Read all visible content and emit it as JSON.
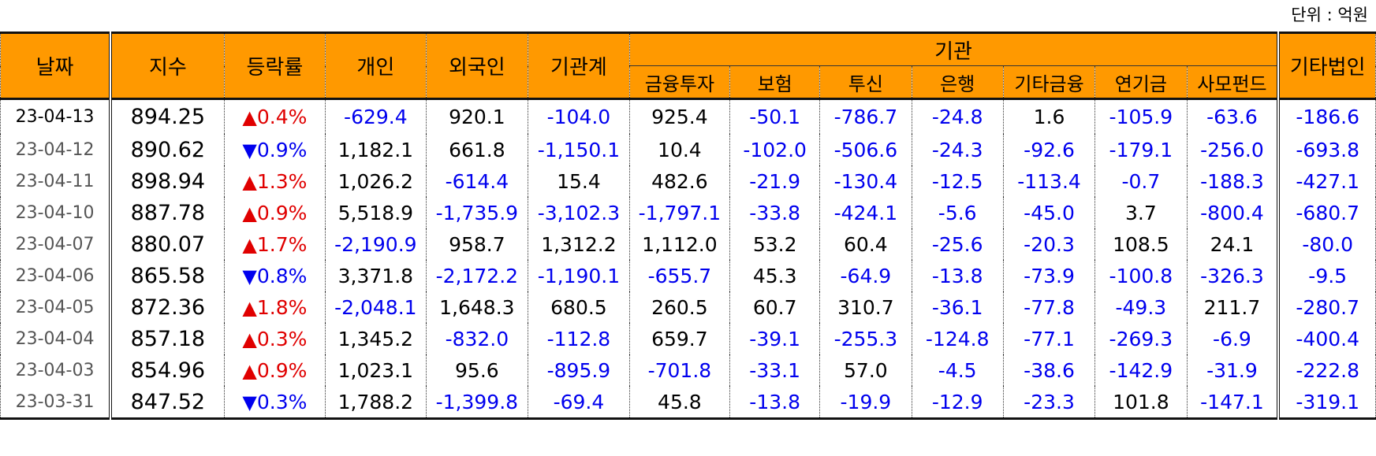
{
  "unit_label": "단위 : 억원",
  "headers": {
    "date": "날짜",
    "index": "지수",
    "change": "등락률",
    "individual": "개인",
    "foreign": "외국인",
    "institution_total": "기관계",
    "institution_group": "기관",
    "sub": [
      "금융투자",
      "보험",
      "투신",
      "은행",
      "기타금융",
      "연기금",
      "사모펀드"
    ],
    "other_corp": "기타법인"
  },
  "rows": [
    {
      "date": "23-04-13",
      "index": "894.25",
      "dir": "up",
      "arrow": "▲",
      "change": "0.4%",
      "cells": [
        "-629.4",
        "920.1",
        "-104.0",
        "925.4",
        "-50.1",
        "-786.7",
        "-24.8",
        "1.6",
        "-105.9",
        "-63.6",
        "-186.6"
      ]
    },
    {
      "date": "23-04-12",
      "index": "890.62",
      "dir": "down",
      "arrow": "▼",
      "change": "0.9%",
      "cells": [
        "1,182.1",
        "661.8",
        "-1,150.1",
        "10.4",
        "-102.0",
        "-506.6",
        "-24.3",
        "-92.6",
        "-179.1",
        "-256.0",
        "-693.8"
      ]
    },
    {
      "date": "23-04-11",
      "index": "898.94",
      "dir": "up",
      "arrow": "▲",
      "change": "1.3%",
      "cells": [
        "1,026.2",
        "-614.4",
        "15.4",
        "482.6",
        "-21.9",
        "-130.4",
        "-12.5",
        "-113.4",
        "-0.7",
        "-188.3",
        "-427.1"
      ]
    },
    {
      "date": "23-04-10",
      "index": "887.78",
      "dir": "up",
      "arrow": "▲",
      "change": "0.9%",
      "cells": [
        "5,518.9",
        "-1,735.9",
        "-3,102.3",
        "-1,797.1",
        "-33.8",
        "-424.1",
        "-5.6",
        "-45.0",
        "3.7",
        "-800.4",
        "-680.7"
      ]
    },
    {
      "date": "23-04-07",
      "index": "880.07",
      "dir": "up",
      "arrow": "▲",
      "change": "1.7%",
      "cells": [
        "-2,190.9",
        "958.7",
        "1,312.2",
        "1,112.0",
        "53.2",
        "60.4",
        "-25.6",
        "-20.3",
        "108.5",
        "24.1",
        "-80.0"
      ]
    },
    {
      "date": "23-04-06",
      "index": "865.58",
      "dir": "down",
      "arrow": "▼",
      "change": "0.8%",
      "cells": [
        "3,371.8",
        "-2,172.2",
        "-1,190.1",
        "-655.7",
        "45.3",
        "-64.9",
        "-13.8",
        "-73.9",
        "-100.8",
        "-326.3",
        "-9.5"
      ]
    },
    {
      "date": "23-04-05",
      "index": "872.36",
      "dir": "up",
      "arrow": "▲",
      "change": "1.8%",
      "cells": [
        "-2,048.1",
        "1,648.3",
        "680.5",
        "260.5",
        "60.7",
        "310.7",
        "-36.1",
        "-77.8",
        "-49.3",
        "211.7",
        "-280.7"
      ]
    },
    {
      "date": "23-04-04",
      "index": "857.18",
      "dir": "up",
      "arrow": "▲",
      "change": "0.3%",
      "cells": [
        "1,345.2",
        "-832.0",
        "-112.8",
        "659.7",
        "-39.1",
        "-255.3",
        "-124.8",
        "-77.1",
        "-269.3",
        "-6.9",
        "-400.4"
      ]
    },
    {
      "date": "23-04-03",
      "index": "854.96",
      "dir": "up",
      "arrow": "▲",
      "change": "0.9%",
      "cells": [
        "1,023.1",
        "95.6",
        "-895.9",
        "-701.8",
        "-33.1",
        "57.0",
        "-4.5",
        "-38.6",
        "-142.9",
        "-31.9",
        "-222.8"
      ]
    },
    {
      "date": "23-03-31",
      "index": "847.52",
      "dir": "down",
      "arrow": "▼",
      "change": "0.3%",
      "cells": [
        "1,788.2",
        "-1,399.8",
        "-69.4",
        "45.8",
        "-13.8",
        "-19.9",
        "-12.9",
        "-23.3",
        "101.8",
        "-147.1",
        "-319.1"
      ]
    }
  ],
  "colors": {
    "header_bg": "#ff9900",
    "up": "#e00000",
    "down": "#0000ee",
    "negative": "#0000ee"
  }
}
